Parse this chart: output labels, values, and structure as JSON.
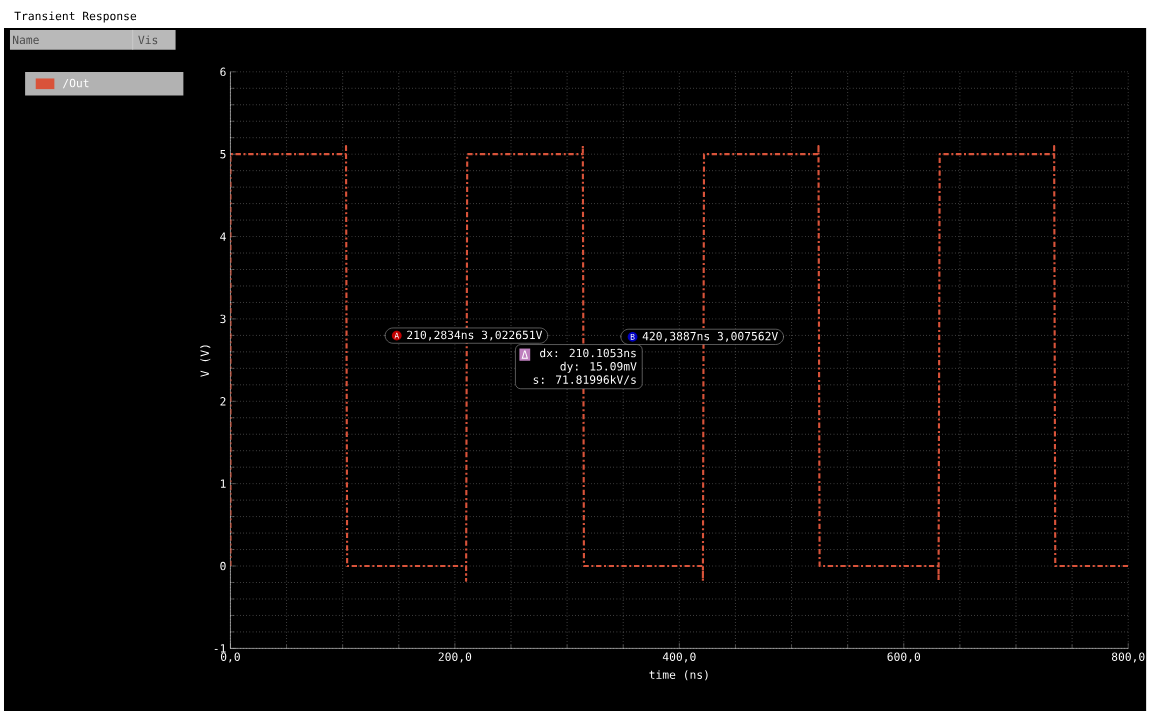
{
  "chart_data": {
    "type": "line",
    "title": "Transient Response",
    "xlabel": "time (ns)",
    "ylabel": "V (V)",
    "x": [
      0,
      0,
      103,
      103,
      104,
      210,
      210,
      211,
      314,
      314,
      315,
      421,
      421,
      422,
      524,
      524,
      525,
      631,
      631,
      632,
      734,
      734,
      735,
      800
    ],
    "series": [
      {
        "name": "/Out",
        "color": "#d9533a",
        "line_style": "dashed",
        "values": [
          0,
          5,
          5,
          5.1,
          0,
          0,
          -0.18,
          5,
          5,
          5.1,
          0,
          0,
          -0.18,
          5,
          5,
          5.1,
          0,
          0,
          -0.18,
          5,
          5,
          5.1,
          0,
          0
        ]
      }
    ],
    "xlim": [
      0,
      800
    ],
    "ylim": [
      -1,
      6
    ],
    "xticks": [
      {
        "value": 0,
        "label": "0,0"
      },
      {
        "value": 200,
        "label": "200,0"
      },
      {
        "value": 400,
        "label": "400,0"
      },
      {
        "value": 600,
        "label": "600,0"
      },
      {
        "value": 800,
        "label": "800,0"
      }
    ],
    "yticks": [
      -1,
      0,
      1,
      2,
      3,
      4,
      5,
      6
    ],
    "grid": true,
    "legend": "left",
    "annotations": [
      "Name",
      "Vis",
      {
        "text": "210,2834ns 3,022651V",
        "x": 210.2834,
        "y": 3.022651
      },
      {
        "text": "420,3887ns 3,007562V",
        "x": 420.3887,
        "y": 3.007562
      },
      "dx: 210.1053ns",
      "dy: 15.09mV",
      "s: 71.81996kV/s",
      "A",
      "B",
      "Δ"
    ]
  }
}
